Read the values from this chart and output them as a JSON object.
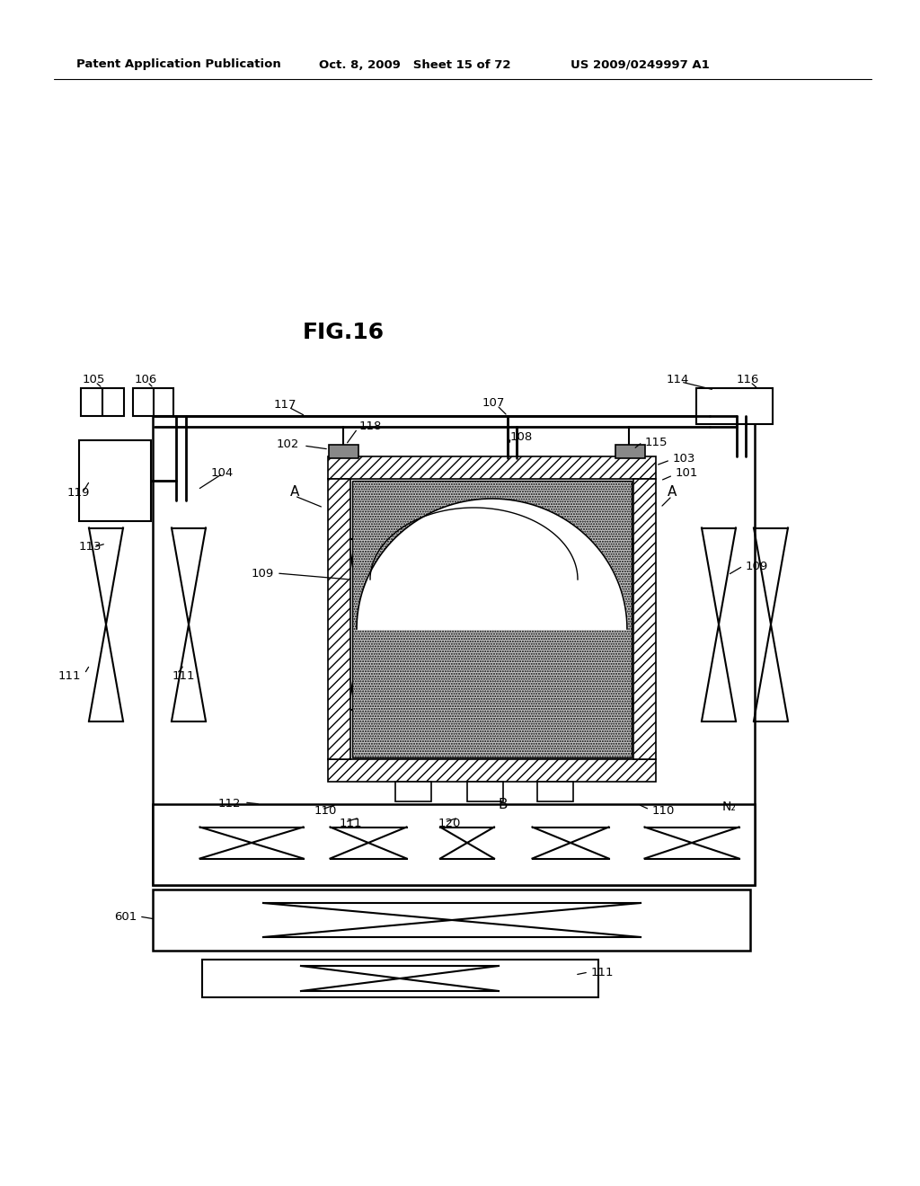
{
  "title": "FIG.16",
  "header_left": "Patent Application Publication",
  "header_center": "Oct. 8, 2009   Sheet 15 of 72",
  "header_right": "US 2009/0249997 A1",
  "bg_color": "#ffffff",
  "line_color": "#000000",
  "fig_width": 10.24,
  "fig_height": 13.2,
  "dpi": 100
}
